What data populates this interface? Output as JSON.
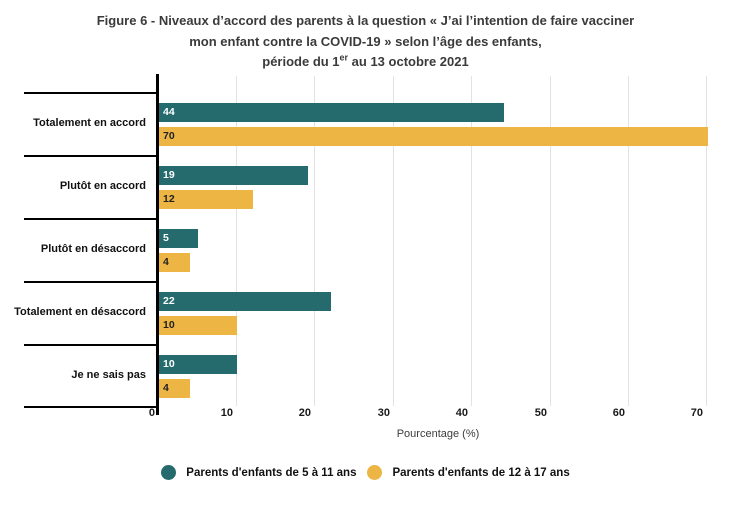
{
  "title": {
    "line1": "Figure 6 - Niveaux d’accord des parents à la question « J’ai l’intention de faire vacciner",
    "line2": "mon enfant contre la COVID-19 » selon l’âge des enfants,",
    "line3_prefix": "période du 1",
    "line3_sup": "er",
    "line3_suffix": " au 13 octobre 2021"
  },
  "chart_data": {
    "type": "bar",
    "orientation": "horizontal",
    "title": "Figure 6 - Niveaux d’accord des parents à la question « J’ai l’intention de faire vacciner mon enfant contre la COVID-19 » selon l’âge des enfants, période du 1er au 13 octobre 2021",
    "categories": [
      "Totalement en accord",
      "Plutôt en accord",
      "Plutôt en désaccord",
      "Totalement en désaccord",
      "Je ne sais pas"
    ],
    "series": [
      {
        "name": "Parents d'enfants de 5 à 11 ans",
        "color": "#256b6e",
        "label_color": "#ffffff",
        "values": [
          44,
          19,
          5,
          22,
          10
        ]
      },
      {
        "name": "Parents d'enfants de 12 à 17 ans",
        "color": "#ecb544",
        "label_color": "#222222",
        "values": [
          70,
          12,
          4,
          10,
          4
        ]
      }
    ],
    "xlabel": "Pourcentage (%)",
    "xticks": [
      0,
      10,
      20,
      30,
      40,
      50,
      60,
      70
    ],
    "xlim": [
      0,
      73
    ],
    "grid": true,
    "legend_position": "bottom"
  },
  "colors": {
    "series_5_11": "#256b6e",
    "series_12_17": "#ecb544",
    "gridline": "#e2e2e2",
    "axis": "#000000",
    "title_text": "#3a3a3a"
  }
}
